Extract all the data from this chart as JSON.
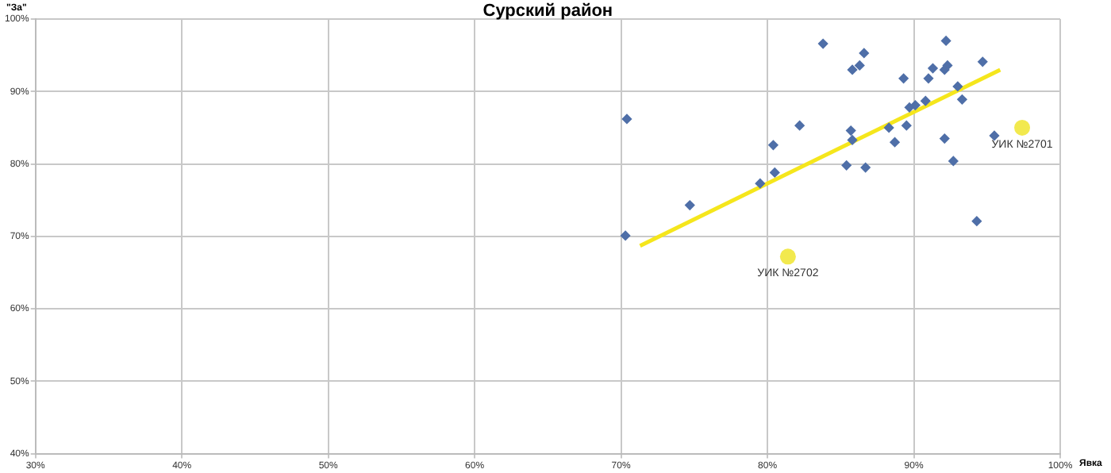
{
  "chart_data": {
    "type": "scatter",
    "title": "Сурский район",
    "xlabel": "Явка",
    "ylabel": "\"За\"",
    "xlim": [
      30,
      100
    ],
    "ylim": [
      40,
      100
    ],
    "xticks": [
      {
        "value": 30,
        "label": "30%"
      },
      {
        "value": 40,
        "label": "40%"
      },
      {
        "value": 50,
        "label": "50%"
      },
      {
        "value": 60,
        "label": "60%"
      },
      {
        "value": 70,
        "label": "70%"
      },
      {
        "value": 80,
        "label": "80%"
      },
      {
        "value": 90,
        "label": "90%"
      },
      {
        "value": 100,
        "label": "100%"
      }
    ],
    "yticks": [
      {
        "value": 40,
        "label": "40%"
      },
      {
        "value": 50,
        "label": "50%"
      },
      {
        "value": 60,
        "label": "60%"
      },
      {
        "value": 70,
        "label": "70%"
      },
      {
        "value": 80,
        "label": "80%"
      },
      {
        "value": 90,
        "label": "90%"
      },
      {
        "value": 100,
        "label": "100%"
      }
    ],
    "grid": true,
    "marker": "diamond",
    "series": [
      {
        "color": "#4f6fa8",
        "x": [
          70.4,
          70.3,
          74.7,
          79.5,
          80.5,
          80.4,
          82.2,
          83.8,
          85.4,
          85.7,
          85.8,
          85.8,
          86.3,
          86.6,
          86.7,
          88.3,
          88.7,
          89.3,
          89.5,
          89.7,
          90.1,
          90.8,
          91.0,
          91.3,
          92.1,
          92.2,
          92.3,
          92.1,
          92.7,
          93.0,
          93.3,
          94.3,
          94.7,
          95.5
        ],
        "values": [
          86.2,
          70.1,
          74.3,
          77.3,
          78.8,
          82.6,
          85.3,
          96.6,
          79.8,
          84.6,
          83.3,
          93.0,
          93.6,
          95.3,
          79.5,
          85.0,
          83.0,
          91.8,
          85.3,
          87.8,
          88.1,
          88.7,
          91.8,
          93.2,
          93.0,
          97.0,
          93.6,
          83.5,
          80.4,
          90.7,
          88.9,
          72.1,
          94.1,
          83.9
        ]
      },
      {
        "color": "#f2e94e",
        "marker": "circle",
        "x": [
          97.4,
          81.4
        ],
        "values": [
          85.0,
          67.2
        ]
      },
      {
        "type": "line",
        "color": "#f5e61c",
        "marker": "none",
        "x": [
          71.3,
          95.9
        ],
        "values": [
          68.7,
          93.0
        ]
      }
    ],
    "annotations": [
      {
        "text": "УИК №2701",
        "x": 97.4,
        "y": 85.0
      },
      {
        "text": "УИК №2702",
        "x": 81.4,
        "y": 67.2
      }
    ]
  }
}
